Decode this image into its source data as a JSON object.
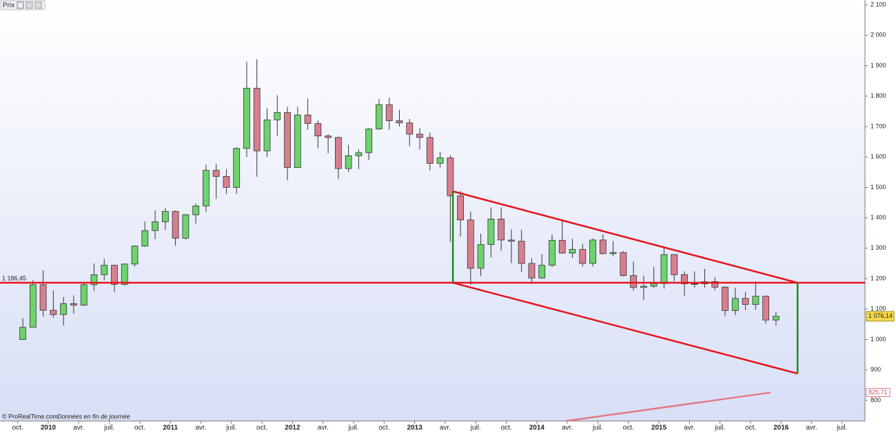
{
  "chart_data": {
    "type": "candlestick",
    "panel_label": "Prix",
    "footer": "© ProRealTime.com",
    "footer_note": "Données en fin de journée",
    "xlim": [
      2009.605,
      2016.687
    ],
    "ylim": [
      732,
      2116
    ],
    "xticks": [
      {
        "value": 2009.75,
        "label": "oct."
      },
      2010,
      {
        "value": 2010.25,
        "label": "avr."
      },
      {
        "value": 2010.5,
        "label": "juil."
      },
      {
        "value": 2010.75,
        "label": "oct."
      },
      2011,
      {
        "value": 2011.25,
        "label": "avr."
      },
      {
        "value": 2011.5,
        "label": "juil."
      },
      {
        "value": 2011.75,
        "label": "oct."
      },
      2012,
      {
        "value": 2012.25,
        "label": "avr."
      },
      {
        "value": 2012.5,
        "label": "juil."
      },
      {
        "value": 2012.75,
        "label": "oct."
      },
      2013,
      {
        "value": 2013.25,
        "label": "avr."
      },
      {
        "value": 2013.5,
        "label": "juil."
      },
      {
        "value": 2013.75,
        "label": "oct."
      },
      2014,
      {
        "value": 2014.25,
        "label": "avr."
      },
      {
        "value": 2014.5,
        "label": "juil."
      },
      {
        "value": 2014.75,
        "label": "oct."
      },
      2015,
      {
        "value": 2015.25,
        "label": "avr."
      },
      {
        "value": 2015.5,
        "label": "juil."
      },
      {
        "value": 2015.75,
        "label": "oct."
      },
      2016,
      {
        "value": 2016.25,
        "label": "avr."
      },
      {
        "value": 2016.5,
        "label": "juil."
      }
    ],
    "yticks": [
      800,
      900,
      {
        "value": 1000,
        "label": "1 000"
      },
      {
        "value": 1100,
        "label": "1 100"
      },
      {
        "value": 1200,
        "label": "1 200"
      },
      {
        "value": 1300,
        "label": "1 300"
      },
      {
        "value": 1400,
        "label": "1 400"
      },
      {
        "value": 1500,
        "label": "1 500"
      },
      {
        "value": 1600,
        "label": "1 600"
      },
      {
        "value": 1700,
        "label": "1 700"
      },
      {
        "value": 1800,
        "label": "1 800"
      },
      {
        "value": 1900,
        "label": "1 900"
      },
      {
        "value": 2000,
        "label": "2 000"
      },
      {
        "value": 2100,
        "label": "2 100"
      }
    ],
    "up_color": "#6dd36d",
    "down_color": "#d77f8f",
    "x": [
      "2009-10",
      "2009-11",
      "2009-12",
      "2010-01",
      "2010-02",
      "2010-03",
      "2010-04",
      "2010-05",
      "2010-06",
      "2010-07",
      "2010-08",
      "2010-09",
      "2010-10",
      "2010-11",
      "2010-12",
      "2011-01",
      "2011-02",
      "2011-03",
      "2011-04",
      "2011-05",
      "2011-06",
      "2011-07",
      "2011-08",
      "2011-09",
      "2011-10",
      "2011-11",
      "2011-12",
      "2012-01",
      "2012-02",
      "2012-03",
      "2012-04",
      "2012-05",
      "2012-06",
      "2012-07",
      "2012-08",
      "2012-09",
      "2012-10",
      "2012-11",
      "2012-12",
      "2013-01",
      "2013-02",
      "2013-03",
      "2013-04",
      "2013-05",
      "2013-06",
      "2013-07",
      "2013-08",
      "2013-09",
      "2013-10",
      "2013-11",
      "2013-12",
      "2014-01",
      "2014-02",
      "2014-03",
      "2014-04",
      "2014-05",
      "2014-06",
      "2014-07",
      "2014-08",
      "2014-09",
      "2014-10",
      "2014-11",
      "2014-12",
      "2015-01",
      "2015-02",
      "2015-03",
      "2015-04",
      "2015-05",
      "2015-06",
      "2015-07",
      "2015-08",
      "2015-09",
      "2015-10",
      "2015-11",
      "2015-12"
    ],
    "open": [
      1000,
      1040,
      1180,
      1096,
      1082,
      1118,
      1113,
      1180,
      1213,
      1244,
      1181,
      1248,
      1307,
      1358,
      1387,
      1421,
      1333,
      1410,
      1439,
      1556,
      1536,
      1500,
      1628,
      1826,
      1620,
      1722,
      1746,
      1565,
      1738,
      1710,
      1669,
      1664,
      1562,
      1604,
      1614,
      1692,
      1772,
      1719,
      1712,
      1675,
      1664,
      1579,
      1597,
      1472,
      1393,
      1234,
      1312,
      1396,
      1327,
      1323,
      1250,
      1202,
      1244,
      1326,
      1284,
      1296,
      1250,
      1327,
      1282,
      1286,
      1210,
      1171,
      1175,
      1184,
      1279,
      1213,
      1183,
      1183,
      1190,
      1172,
      1095,
      1135,
      1115,
      1142,
      1064
    ],
    "high": [
      1070,
      1195,
      1227,
      1162,
      1140,
      1145,
      1184,
      1250,
      1265,
      1246,
      1250,
      1310,
      1388,
      1424,
      1432,
      1424,
      1412,
      1447,
      1575,
      1577,
      1560,
      1632,
      1913,
      1921,
      1760,
      1803,
      1765,
      1765,
      1792,
      1720,
      1675,
      1667,
      1640,
      1625,
      1695,
      1790,
      1795,
      1755,
      1725,
      1695,
      1680,
      1617,
      1606,
      1488,
      1420,
      1348,
      1434,
      1434,
      1362,
      1361,
      1267,
      1280,
      1345,
      1392,
      1331,
      1315,
      1332,
      1345,
      1323,
      1290,
      1256,
      1210,
      1238,
      1307,
      1281,
      1224,
      1224,
      1232,
      1205,
      1175,
      1170,
      1157,
      1191,
      1145,
      1090
    ],
    "low": [
      1000,
      1040,
      1075,
      1072,
      1045,
      1085,
      1110,
      1160,
      1195,
      1155,
      1177,
      1240,
      1305,
      1330,
      1360,
      1308,
      1328,
      1381,
      1420,
      1462,
      1478,
      1478,
      1600,
      1535,
      1600,
      1670,
      1523,
      1565,
      1690,
      1628,
      1612,
      1527,
      1550,
      1560,
      1590,
      1690,
      1690,
      1700,
      1635,
      1625,
      1555,
      1565,
      1321,
      1338,
      1180,
      1208,
      1270,
      1292,
      1251,
      1221,
      1183,
      1200,
      1238,
      1282,
      1268,
      1240,
      1240,
      1280,
      1273,
      1207,
      1160,
      1130,
      1170,
      1167,
      1191,
      1142,
      1170,
      1170,
      1162,
      1077,
      1080,
      1097,
      1098,
      1052,
      1046
    ],
    "close": [
      1040,
      1180,
      1096,
      1082,
      1118,
      1113,
      1180,
      1213,
      1244,
      1181,
      1248,
      1307,
      1358,
      1387,
      1421,
      1333,
      1410,
      1439,
      1556,
      1536,
      1500,
      1628,
      1826,
      1620,
      1722,
      1746,
      1565,
      1738,
      1710,
      1669,
      1664,
      1562,
      1604,
      1614,
      1692,
      1772,
      1719,
      1712,
      1675,
      1664,
      1579,
      1597,
      1472,
      1393,
      1234,
      1312,
      1396,
      1327,
      1323,
      1250,
      1202,
      1244,
      1326,
      1284,
      1296,
      1250,
      1327,
      1282,
      1286,
      1210,
      1171,
      1175,
      1184,
      1279,
      1213,
      1183,
      1183,
      1190,
      1172,
      1095,
      1135,
      1115,
      1142,
      1064,
      1076.14
    ],
    "support": {
      "value": 1186.45,
      "label": "1 186,45",
      "color": "#e8121a"
    },
    "last_price": {
      "value": 1076.14,
      "label": "1 076,14"
    },
    "trendlines": [
      {
        "x": [
          2013.313,
          2016.135
        ],
        "y": [
          1487,
          1186.45
        ],
        "color": "#e8121a"
      },
      {
        "x": [
          2013.313,
          2016.135
        ],
        "y": [
          1186.45,
          888
        ],
        "color": "#e8121a"
      },
      {
        "x": [
          2013.313,
          2013.313
        ],
        "y": [
          1186.45,
          1487
        ],
        "color": "#1a8a1a"
      },
      {
        "x": [
          2016.135,
          2016.135
        ],
        "y": [
          888,
          1186.45
        ],
        "color": "#1a8a1a"
      },
      {
        "x": [
          2014.24,
          2015.915
        ],
        "y": [
          732,
          825.71
        ],
        "color": "#e27a84"
      }
    ],
    "indicator": {
      "value": 825.71,
      "label": "825,71"
    }
  }
}
